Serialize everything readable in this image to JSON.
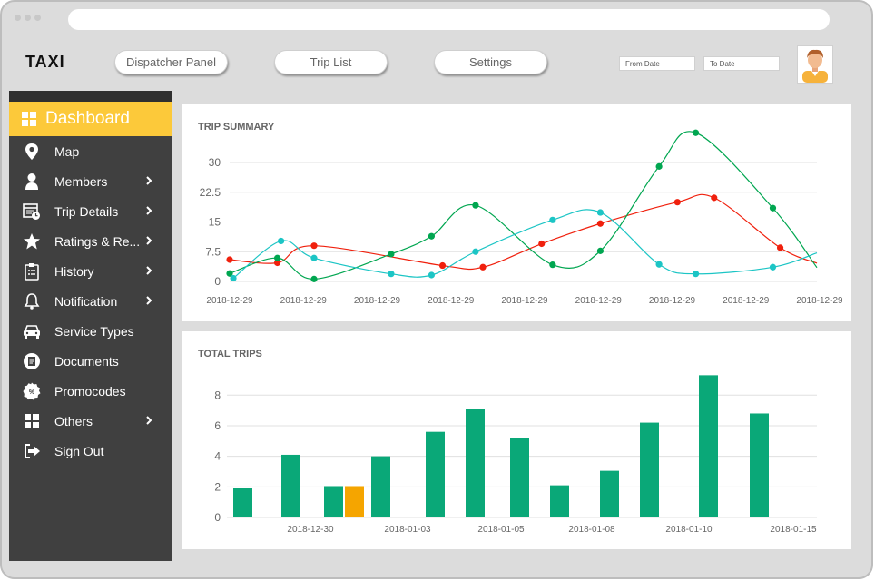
{
  "app": {
    "logo": "TAXI"
  },
  "nav": {
    "buttons": [
      "Dispatcher Panel",
      "Trip List",
      "Settings"
    ],
    "from_date_placeholder": "From Date",
    "to_date_placeholder": "To Date"
  },
  "colors": {
    "accent": "#fcc93a",
    "sidebar_bg": "#404040",
    "bar_green": "#0aa878",
    "bar_highlight": "#f5a500",
    "series_red": "#f0200d",
    "series_green": "#00a650",
    "series_cyan": "#1cc5c5"
  },
  "sidebar": {
    "active": {
      "label": "Dashboard",
      "icon": "dashboard-grid-icon"
    },
    "items": [
      {
        "label": "Map",
        "icon": "map-pin-icon",
        "chevron": false
      },
      {
        "label": "Members",
        "icon": "user-icon",
        "chevron": true
      },
      {
        "label": "Trip Details",
        "icon": "calendar-clock-icon",
        "chevron": true
      },
      {
        "label": "Ratings & Re...",
        "icon": "star-icon",
        "chevron": true
      },
      {
        "label": "History",
        "icon": "clipboard-list-icon",
        "chevron": true
      },
      {
        "label": "Notification",
        "icon": "bell-icon",
        "chevron": true
      },
      {
        "label": "Service Types",
        "icon": "car-icon",
        "chevron": false
      },
      {
        "label": "Documents",
        "icon": "document-icon",
        "chevron": false
      },
      {
        "label": "Promocodes",
        "icon": "percent-badge-icon",
        "chevron": false
      },
      {
        "label": "Others",
        "icon": "grid-icon",
        "chevron": true
      },
      {
        "label": "Sign Out",
        "icon": "sign-out-icon",
        "chevron": false
      }
    ]
  },
  "chart_data": [
    {
      "type": "line",
      "title": "TRIP SUMMARY",
      "ylim": [
        0,
        30
      ],
      "yticks": [
        "0",
        "7.5",
        "15",
        "22.5",
        "30"
      ],
      "x_tick_labels": [
        "2018-12-29",
        "2018-12-29",
        "2018-12-29",
        "2018-12-29",
        "2018-12-29",
        "2018-12-29",
        "2018-12-29",
        "2018-12-29",
        "2018-12-29"
      ],
      "x_range": [
        0,
        16
      ],
      "grid": true,
      "series": [
        {
          "color": "#f0200d",
          "x": [
            0,
            1.3,
            2.3,
            5.8,
            6.9,
            8.5,
            10.1,
            12.2,
            13.2,
            15
          ],
          "y": [
            5.5,
            4.7,
            9,
            4,
            3.6,
            9.5,
            14.6,
            20,
            21.1,
            8.5
          ],
          "end_y": 4.6
        },
        {
          "color": "#00a650",
          "x": [
            0,
            1.3,
            2.3,
            4.4,
            5.5,
            6.7,
            8.8,
            10.1,
            11.7,
            12.7,
            14.8
          ],
          "y": [
            2,
            5.9,
            0.6,
            6.9,
            11.4,
            19.2,
            4.2,
            7.7,
            29,
            37.5,
            18.5
          ],
          "end_y": 3.5
        },
        {
          "color": "#1cc5c5",
          "x": [
            0.1,
            1.4,
            2.3,
            4.4,
            5.5,
            6.7,
            8.8,
            10.1,
            11.7,
            12.7,
            14.8
          ],
          "y": [
            0.8,
            10.2,
            5.9,
            1.9,
            1.6,
            7.5,
            15.5,
            17.4,
            4.3,
            1.9,
            3.6
          ],
          "end_y": 7.2
        }
      ]
    },
    {
      "type": "bar",
      "title": "TOTAL TRIPS",
      "ylim": [
        0,
        9.5
      ],
      "yticks": [
        "0",
        "2",
        "4",
        "6",
        "8"
      ],
      "x_tick_labels": [
        "2018-12-30",
        "2018-01-03",
        "2018-01-05",
        "2018-01-08",
        "2018-01-10",
        "2018-01-15"
      ],
      "grid": true,
      "bars": [
        {
          "value": 1.9,
          "highlight": false
        },
        {
          "value": 4.1,
          "highlight": false
        },
        {
          "value": 2.05,
          "highlight": false
        },
        {
          "value": 2.05,
          "highlight": true
        },
        {
          "value": 4.0,
          "highlight": false
        },
        {
          "value": 5.6,
          "highlight": false
        },
        {
          "value": 7.1,
          "highlight": false
        },
        {
          "value": 5.2,
          "highlight": false
        },
        {
          "value": 2.1,
          "highlight": false
        },
        {
          "value": 3.05,
          "highlight": false
        },
        {
          "value": 6.2,
          "highlight": false
        },
        {
          "value": 9.3,
          "highlight": false
        },
        {
          "value": 6.8,
          "highlight": false
        }
      ]
    }
  ]
}
